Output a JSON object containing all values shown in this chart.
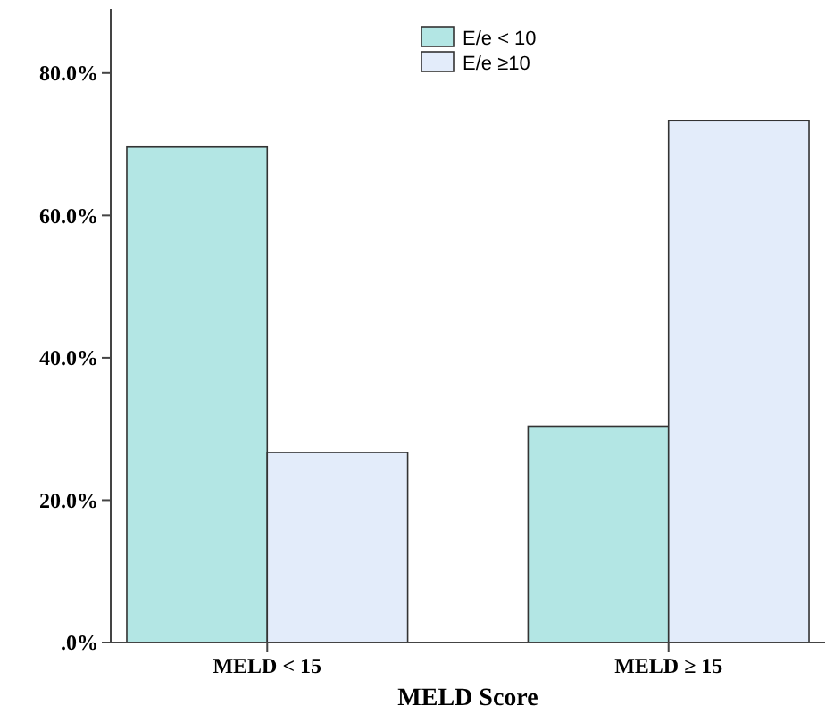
{
  "chart_data": {
    "type": "bar",
    "xlabel": "MELD Score",
    "categories": [
      "MELD < 15",
      "MELD ≥ 15"
    ],
    "series": [
      {
        "name": "E/e < 10",
        "color": "#b3e6e4",
        "values": [
          69.6,
          30.4
        ]
      },
      {
        "name": "E/e ≥10",
        "color": "#e3ecfa",
        "values": [
          26.7,
          73.3
        ]
      }
    ],
    "ylim": [
      0,
      89
    ],
    "yticks": [
      {
        "value": 0,
        "label": ".0%"
      },
      {
        "value": 20,
        "label": "20.0%"
      },
      {
        "value": 40,
        "label": "40.0%"
      },
      {
        "value": 60,
        "label": "60.0%"
      },
      {
        "value": 80,
        "label": "80.0%"
      }
    ],
    "grid": false,
    "legend": "top"
  }
}
